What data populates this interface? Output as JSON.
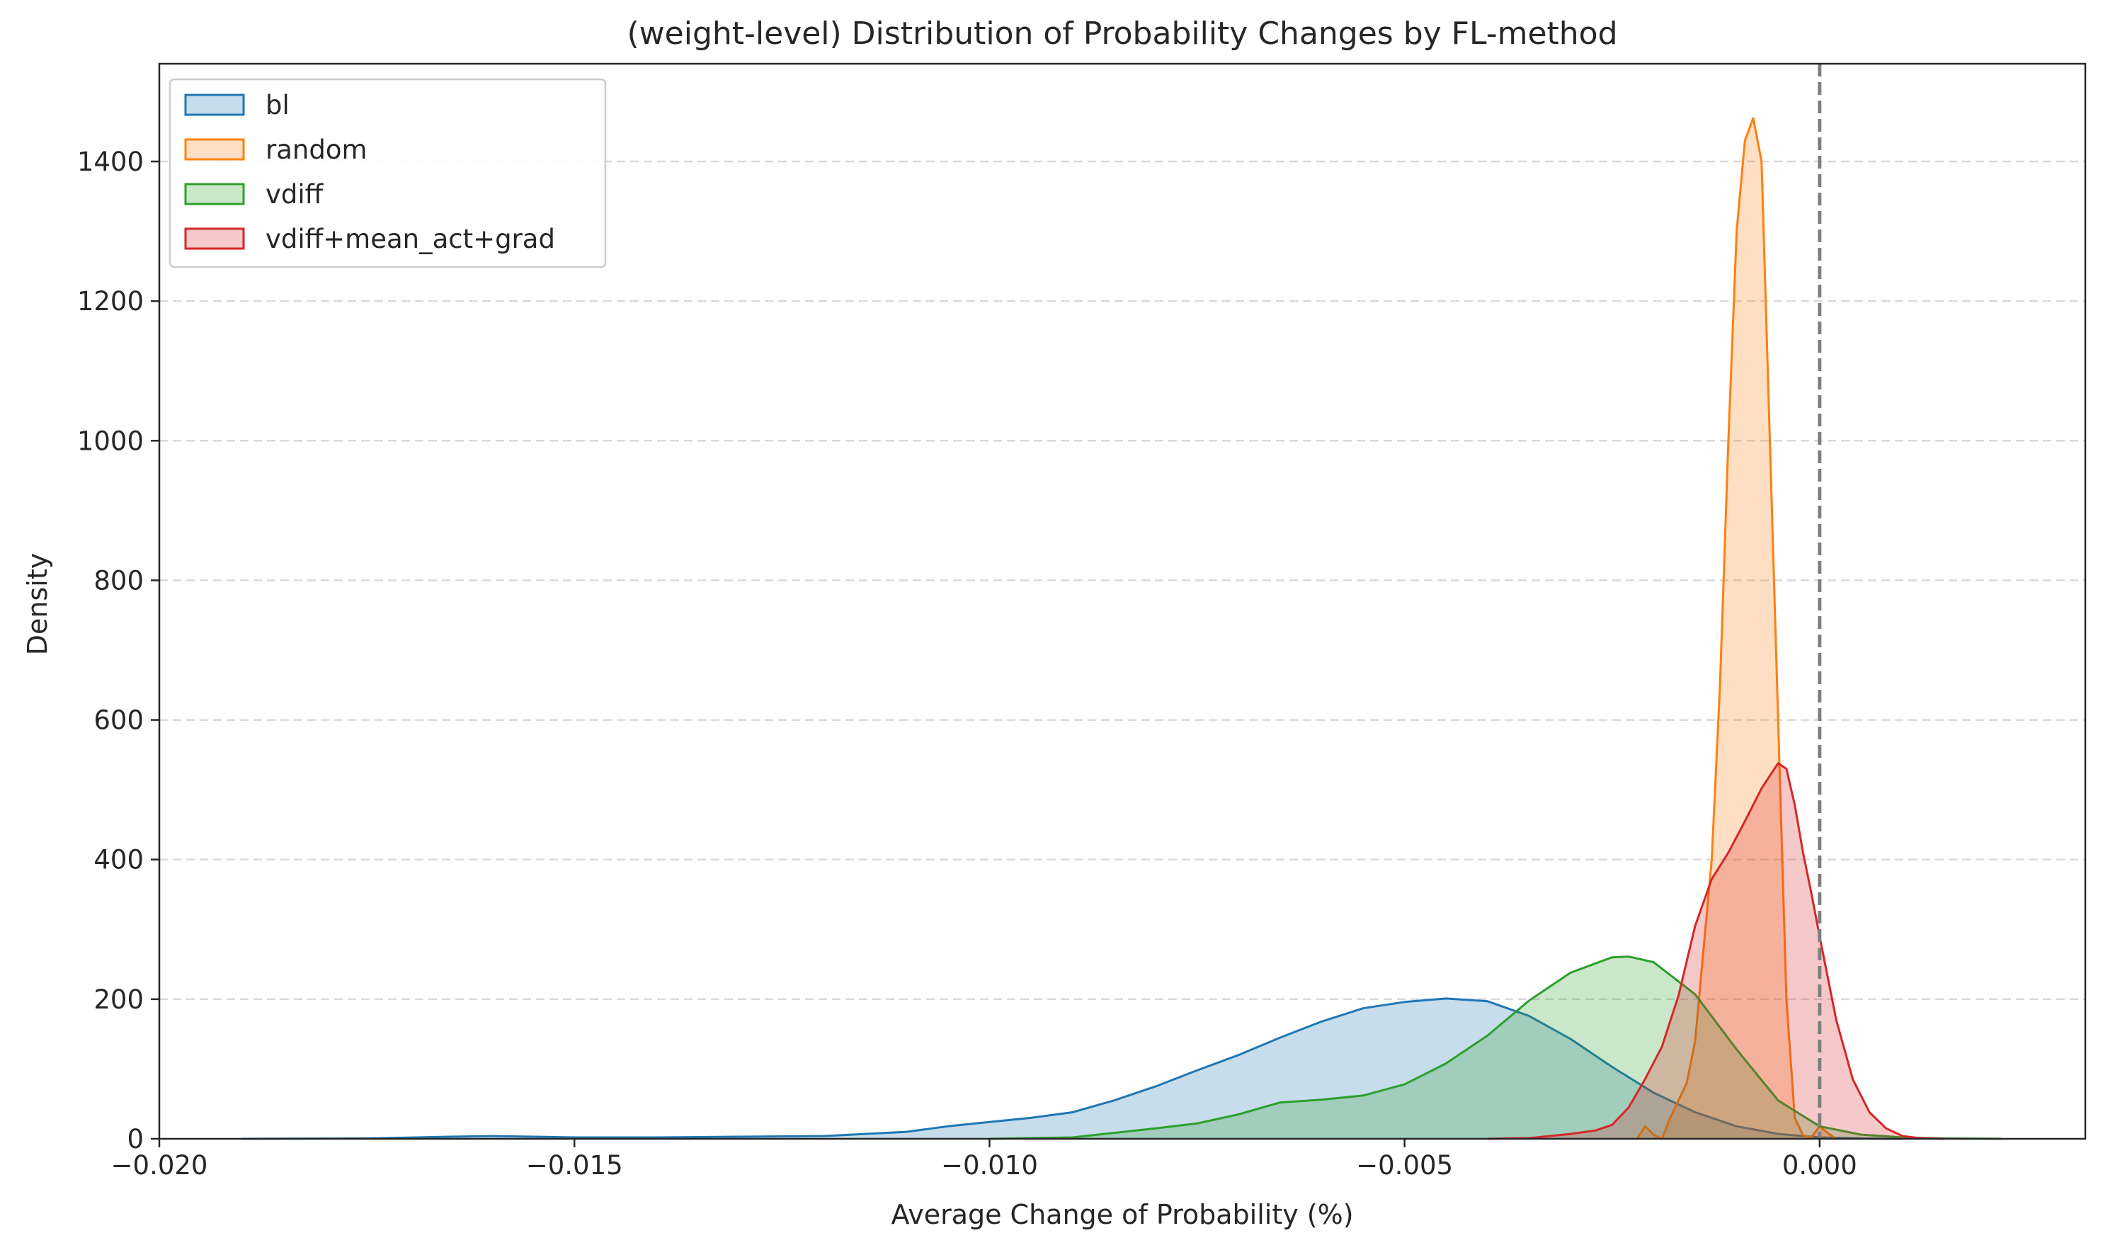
{
  "chart_data": {
    "type": "area",
    "title": "(weight-level) Distribution of Probability Changes by FL-method",
    "xlabel": "Average Change of Probability (%)",
    "ylabel": "Density",
    "xlim": [
      -0.02,
      0.0032
    ],
    "ylim": [
      0,
      1540
    ],
    "xticks": [
      -0.02,
      -0.015,
      -0.01,
      -0.005,
      0.0
    ],
    "xtick_labels": [
      "−0.020",
      "−0.015",
      "−0.010",
      "−0.005",
      "0.000"
    ],
    "yticks": [
      0,
      200,
      400,
      600,
      800,
      1000,
      1200,
      1400
    ],
    "ytick_labels": [
      "0",
      "200",
      "400",
      "600",
      "800",
      "1000",
      "1200",
      "1400"
    ],
    "grid": "y-dashed",
    "legend_position": "top-left",
    "reference_line": {
      "x": 0.0,
      "style": "dashed",
      "color": "#7f7f7f"
    },
    "series": [
      {
        "name": "bl",
        "color": "#1f77b4",
        "points": [
          [
            -0.019,
            0
          ],
          [
            -0.0175,
            0.5
          ],
          [
            -0.0165,
            3
          ],
          [
            -0.016,
            4
          ],
          [
            -0.0155,
            3
          ],
          [
            -0.015,
            2
          ],
          [
            -0.014,
            2
          ],
          [
            -0.013,
            3
          ],
          [
            -0.012,
            4
          ],
          [
            -0.011,
            10
          ],
          [
            -0.0105,
            18
          ],
          [
            -0.01,
            24
          ],
          [
            -0.0095,
            30
          ],
          [
            -0.009,
            38
          ],
          [
            -0.0085,
            55
          ],
          [
            -0.008,
            75
          ],
          [
            -0.0075,
            98
          ],
          [
            -0.007,
            120
          ],
          [
            -0.0065,
            145
          ],
          [
            -0.006,
            168
          ],
          [
            -0.0055,
            187
          ],
          [
            -0.005,
            196
          ],
          [
            -0.0045,
            201
          ],
          [
            -0.004,
            197
          ],
          [
            -0.0035,
            176
          ],
          [
            -0.003,
            143
          ],
          [
            -0.0025,
            103
          ],
          [
            -0.002,
            66
          ],
          [
            -0.0015,
            38
          ],
          [
            -0.001,
            18
          ],
          [
            -0.0005,
            7
          ],
          [
            0.0,
            2
          ],
          [
            0.0005,
            0.5
          ],
          [
            0.001,
            0
          ]
        ]
      },
      {
        "name": "random",
        "color": "#ff7f0e",
        "points": [
          [
            -0.0022,
            0
          ],
          [
            -0.0021,
            18
          ],
          [
            -0.002,
            6
          ],
          [
            -0.0019,
            0
          ],
          [
            -0.0018,
            30
          ],
          [
            -0.0016,
            80
          ],
          [
            -0.0015,
            140
          ],
          [
            -0.0013,
            400
          ],
          [
            -0.0012,
            650
          ],
          [
            -0.0011,
            1000
          ],
          [
            -0.001,
            1300
          ],
          [
            -0.0009,
            1430
          ],
          [
            -0.0008,
            1462
          ],
          [
            -0.0007,
            1400
          ],
          [
            -0.0006,
            1000
          ],
          [
            -0.0005,
            600
          ],
          [
            -0.0004,
            200
          ],
          [
            -0.0003,
            30
          ],
          [
            -0.0002,
            5
          ],
          [
            -0.0001,
            2
          ],
          [
            0.0,
            18
          ],
          [
            0.0001,
            8
          ],
          [
            0.0002,
            0
          ]
        ]
      },
      {
        "name": "vdiff",
        "color": "#2ca02c",
        "points": [
          [
            -0.01,
            0
          ],
          [
            -0.009,
            2
          ],
          [
            -0.008,
            15
          ],
          [
            -0.0075,
            22
          ],
          [
            -0.007,
            35
          ],
          [
            -0.0065,
            52
          ],
          [
            -0.006,
            56
          ],
          [
            -0.0055,
            62
          ],
          [
            -0.005,
            78
          ],
          [
            -0.0045,
            108
          ],
          [
            -0.004,
            148
          ],
          [
            -0.0035,
            198
          ],
          [
            -0.003,
            238
          ],
          [
            -0.0025,
            260
          ],
          [
            -0.0023,
            261
          ],
          [
            -0.002,
            253
          ],
          [
            -0.0015,
            207
          ],
          [
            -0.001,
            128
          ],
          [
            -0.0005,
            55
          ],
          [
            0.0,
            18
          ],
          [
            0.0005,
            6
          ],
          [
            0.001,
            2
          ],
          [
            0.0015,
            0.5
          ],
          [
            0.0022,
            0
          ]
        ]
      },
      {
        "name": "vdiff+mean_act+grad",
        "color": "#d62728",
        "points": [
          [
            -0.004,
            0
          ],
          [
            -0.0035,
            1
          ],
          [
            -0.003,
            7
          ],
          [
            -0.0027,
            12
          ],
          [
            -0.0025,
            20
          ],
          [
            -0.0023,
            45
          ],
          [
            -0.0021,
            86
          ],
          [
            -0.0019,
            132
          ],
          [
            -0.0017,
            205
          ],
          [
            -0.0015,
            305
          ],
          [
            -0.0013,
            372
          ],
          [
            -0.0011,
            410
          ],
          [
            -0.0009,
            455
          ],
          [
            -0.0007,
            502
          ],
          [
            -0.0005,
            538
          ],
          [
            -0.0004,
            530
          ],
          [
            -0.0003,
            478
          ],
          [
            -0.0002,
            410
          ],
          [
            -0.0001,
            352
          ],
          [
            0.0,
            290
          ],
          [
            0.0002,
            170
          ],
          [
            0.0004,
            85
          ],
          [
            0.0006,
            38
          ],
          [
            0.0008,
            15
          ],
          [
            0.001,
            4
          ],
          [
            0.0012,
            1
          ],
          [
            0.0015,
            0
          ]
        ]
      }
    ]
  }
}
